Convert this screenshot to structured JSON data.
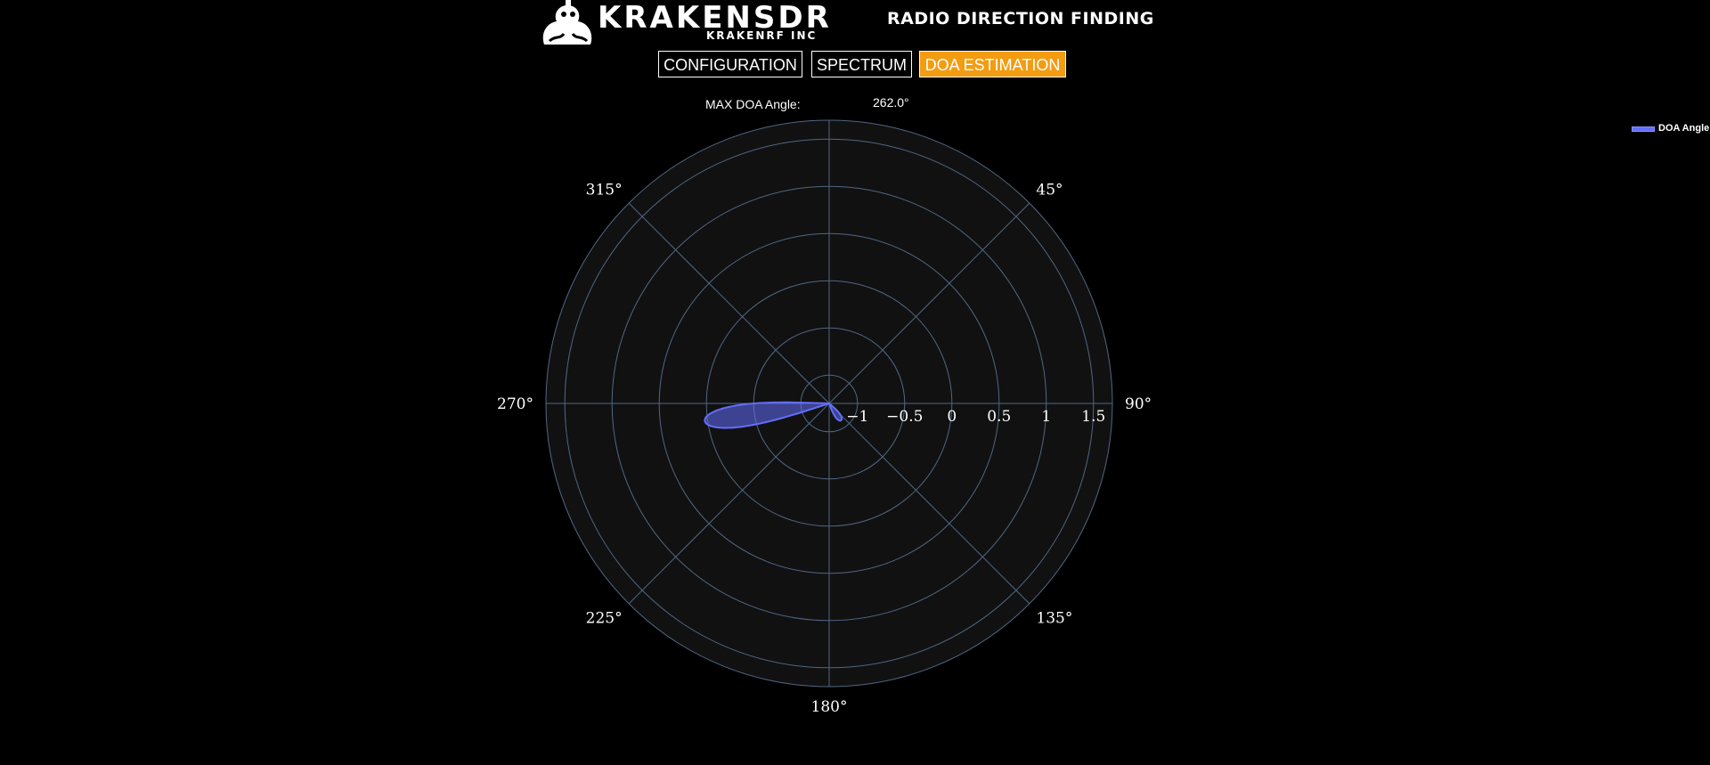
{
  "header": {
    "logo_title": "KRAKENSDR",
    "logo_subtitle": "KRAKENRF INC",
    "title": "RADIO DIRECTION FINDING"
  },
  "nav": {
    "tabs": [
      {
        "label": "CONFIGURATION",
        "active": false
      },
      {
        "label": "SPECTRUM",
        "active": false
      },
      {
        "label": "DOA ESTIMATION",
        "active": true
      }
    ]
  },
  "doa": {
    "max_label": "MAX DOA Angle:",
    "max_value": "262.0°"
  },
  "colors": {
    "background": "#000000",
    "plot_bg": "#111111",
    "grid": "#506784",
    "accent": "#f39c12",
    "trace": "#636efa"
  },
  "legend": {
    "label": "DOA Angle"
  },
  "chart_data": {
    "type": "polar",
    "angular_axis": {
      "direction": "clockwise",
      "rotation": "north",
      "tick_labels": [
        "45°",
        "90°",
        "135°",
        "180°",
        "225°",
        "270°",
        "315°"
      ]
    },
    "radial_axis": {
      "range": [
        -1.3,
        1.7
      ],
      "tick_values": [
        -1,
        -0.5,
        0,
        0.5,
        1,
        1.5
      ],
      "tick_labels": [
        "−1",
        "−0.5",
        "0",
        "0.5",
        "1",
        "1.5"
      ],
      "angle_deg": 90
    },
    "grid": true,
    "legend_position": "top-right",
    "series": [
      {
        "name": "DOA Angle",
        "fill": "toself",
        "peak_angle_deg": 262.0,
        "peak_r": 0.03,
        "base_r": -1.3,
        "half_width_deg": 10
      }
    ]
  }
}
